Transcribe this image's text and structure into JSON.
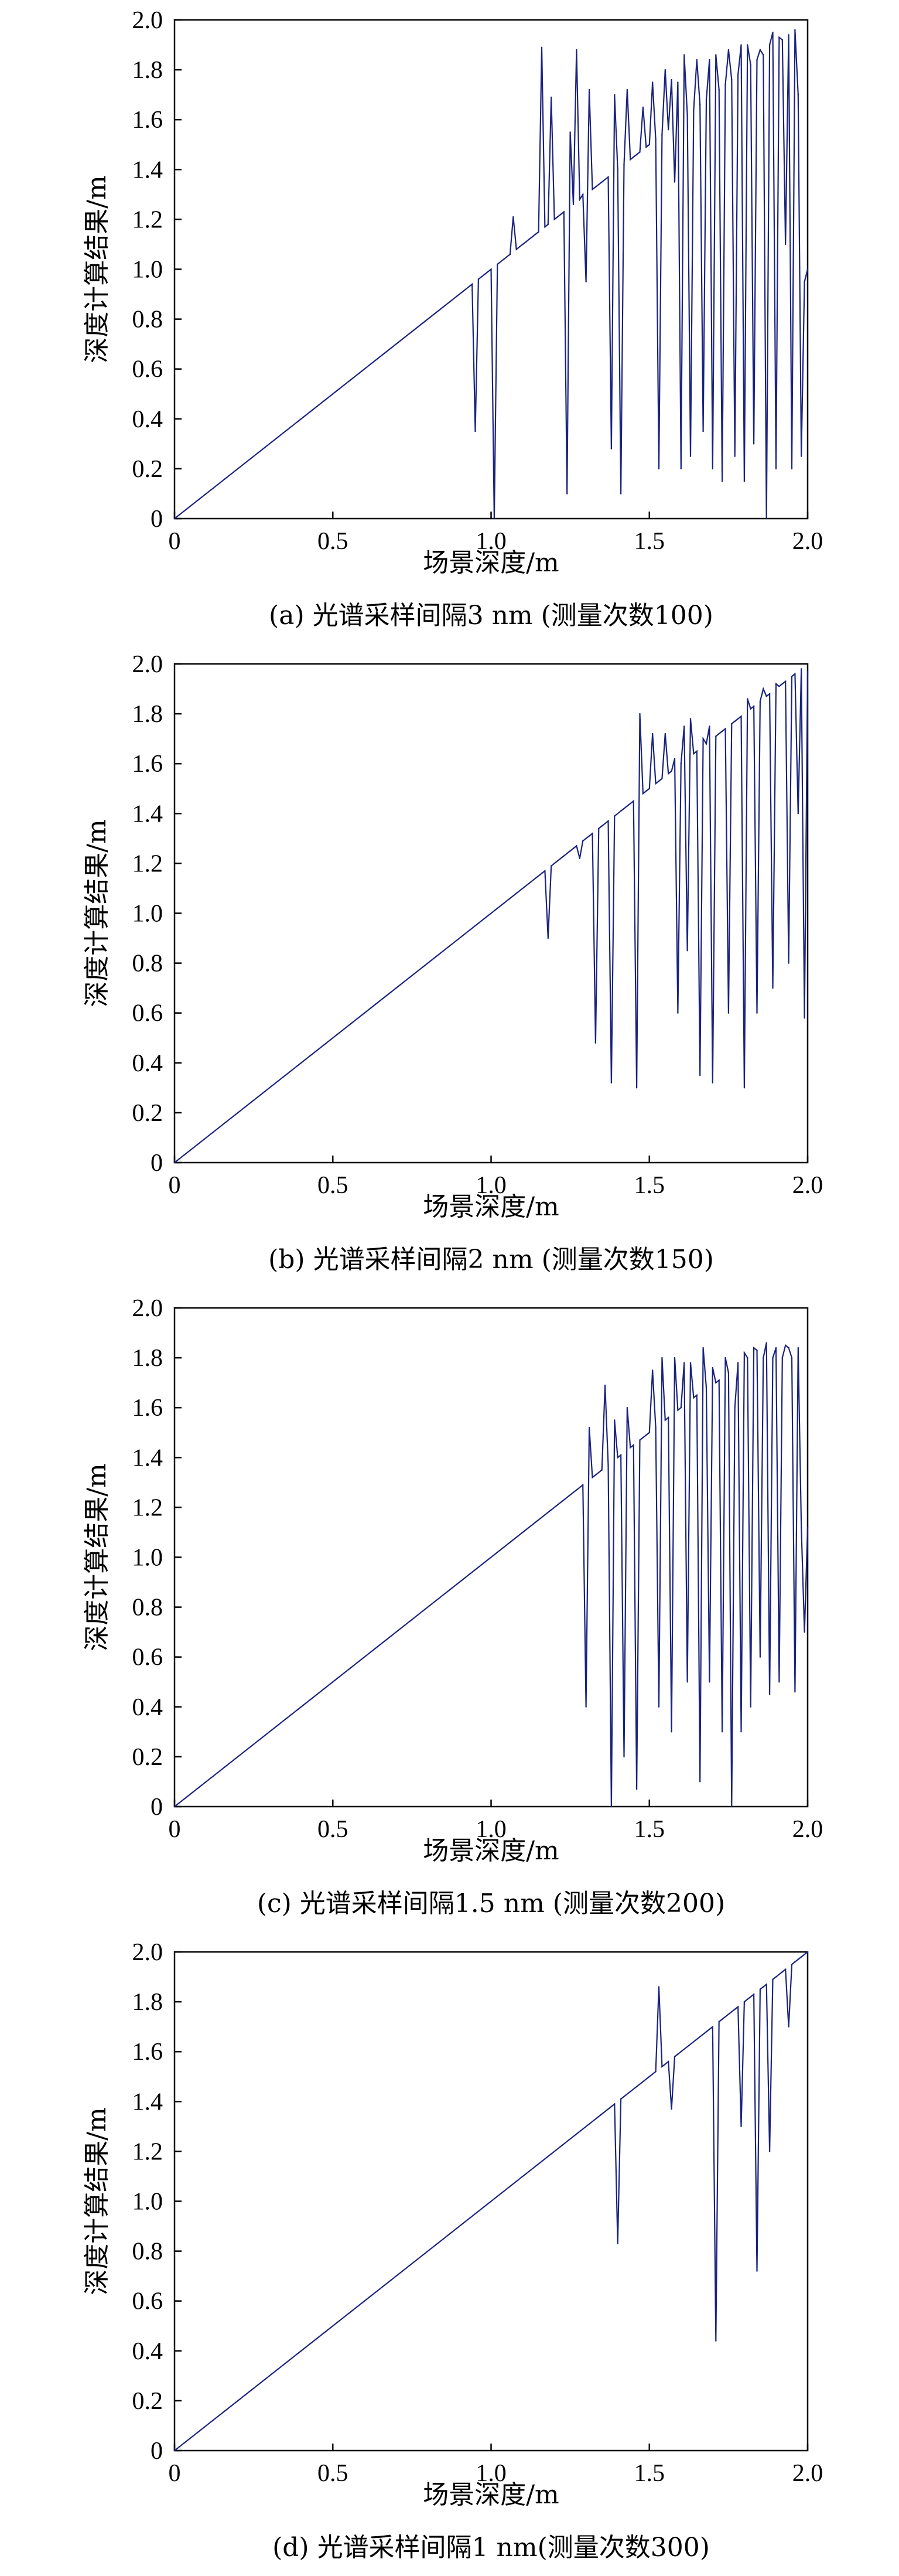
{
  "colors": {
    "series": "#1a237e",
    "axes": "#000000",
    "background": "#ffffff"
  },
  "chart_data": [
    {
      "type": "line",
      "caption": "(a) 光谱采样间隔3 nm (测量次数100)",
      "xlabel": "场景深度/m",
      "ylabel": "深度计算结果/m",
      "xlim": [
        0,
        2.0
      ],
      "ylim": [
        0,
        2.0
      ],
      "xticks": [
        "0",
        "0.5",
        "1.0",
        "1.5",
        "2.0"
      ],
      "yticks": [
        "0",
        "0.2",
        "0.4",
        "0.6",
        "0.8",
        "1.0",
        "1.2",
        "1.4",
        "1.6",
        "1.8",
        "2.0"
      ],
      "grid": false,
      "x": [
        0.0,
        0.94,
        0.95,
        0.96,
        0.97,
        0.98,
        0.99,
        1.0,
        1.01,
        1.02,
        1.03,
        1.04,
        1.05,
        1.06,
        1.07,
        1.08,
        1.09,
        1.1,
        1.11,
        1.12,
        1.13,
        1.14,
        1.15,
        1.16,
        1.17,
        1.18,
        1.19,
        1.2,
        1.21,
        1.22,
        1.23,
        1.24,
        1.25,
        1.26,
        1.27,
        1.28,
        1.29,
        1.3,
        1.31,
        1.32,
        1.33,
        1.34,
        1.35,
        1.36,
        1.37,
        1.38,
        1.39,
        1.4,
        1.41,
        1.42,
        1.43,
        1.44,
        1.45,
        1.46,
        1.47,
        1.48,
        1.49,
        1.5,
        1.51,
        1.52,
        1.53,
        1.54,
        1.55,
        1.56,
        1.57,
        1.58,
        1.59,
        1.6,
        1.61,
        1.62,
        1.63,
        1.64,
        1.65,
        1.66,
        1.67,
        1.68,
        1.69,
        1.7,
        1.71,
        1.72,
        1.73,
        1.74,
        1.75,
        1.76,
        1.77,
        1.78,
        1.79,
        1.8,
        1.81,
        1.82,
        1.83,
        1.84,
        1.85,
        1.86,
        1.87,
        1.88,
        1.89,
        1.9,
        1.91,
        1.92,
        1.93,
        1.94,
        1.95,
        1.96,
        1.97,
        1.98,
        1.99,
        2.0
      ],
      "y": [
        0.0,
        0.94,
        0.35,
        0.96,
        0.97,
        0.98,
        0.99,
        1.0,
        0.0,
        1.02,
        1.03,
        1.04,
        1.05,
        1.06,
        1.21,
        1.08,
        1.09,
        1.1,
        1.11,
        1.12,
        1.13,
        1.14,
        1.15,
        1.89,
        1.17,
        1.18,
        1.69,
        1.2,
        1.21,
        1.22,
        1.23,
        0.1,
        1.55,
        1.26,
        1.88,
        1.28,
        1.3,
        0.95,
        1.72,
        1.32,
        1.33,
        1.34,
        1.35,
        1.36,
        1.37,
        0.28,
        1.7,
        1.4,
        0.1,
        1.42,
        1.72,
        1.44,
        1.45,
        1.46,
        1.47,
        1.65,
        1.49,
        1.5,
        1.75,
        1.52,
        0.2,
        1.54,
        1.8,
        1.56,
        1.76,
        1.35,
        1.75,
        0.2,
        1.86,
        1.62,
        0.25,
        1.64,
        1.84,
        1.66,
        0.35,
        1.68,
        1.84,
        0.2,
        1.86,
        1.72,
        0.15,
        1.74,
        1.88,
        1.76,
        0.25,
        1.78,
        1.9,
        0.15,
        1.9,
        1.82,
        0.3,
        1.84,
        1.88,
        1.86,
        0.0,
        1.9,
        1.95,
        0.2,
        1.93,
        1.92,
        1.1,
        1.94,
        0.2,
        1.96,
        1.7,
        0.25,
        0.95,
        1.0
      ]
    },
    {
      "type": "line",
      "caption": "(b) 光谱采样间隔2 nm (测量次数150)",
      "xlabel": "场景深度/m",
      "ylabel": "深度计算结果/m",
      "xlim": [
        0,
        2.0
      ],
      "ylim": [
        0,
        2.0
      ],
      "xticks": [
        "0",
        "0.5",
        "1.0",
        "1.5",
        "2.0"
      ],
      "yticks": [
        "0",
        "0.2",
        "0.4",
        "0.6",
        "0.8",
        "1.0",
        "1.2",
        "1.4",
        "1.6",
        "1.8",
        "2.0"
      ],
      "grid": false,
      "x": [
        0.0,
        1.16,
        1.17,
        1.18,
        1.19,
        1.2,
        1.21,
        1.22,
        1.23,
        1.24,
        1.25,
        1.26,
        1.27,
        1.28,
        1.29,
        1.3,
        1.31,
        1.32,
        1.33,
        1.34,
        1.35,
        1.36,
        1.37,
        1.38,
        1.39,
        1.4,
        1.41,
        1.42,
        1.43,
        1.44,
        1.45,
        1.46,
        1.47,
        1.48,
        1.49,
        1.5,
        1.51,
        1.52,
        1.53,
        1.54,
        1.55,
        1.56,
        1.57,
        1.58,
        1.59,
        1.6,
        1.61,
        1.62,
        1.63,
        1.64,
        1.65,
        1.66,
        1.67,
        1.68,
        1.69,
        1.7,
        1.71,
        1.72,
        1.73,
        1.74,
        1.75,
        1.76,
        1.77,
        1.78,
        1.79,
        1.8,
        1.81,
        1.82,
        1.83,
        1.84,
        1.85,
        1.86,
        1.87,
        1.88,
        1.89,
        1.9,
        1.91,
        1.92,
        1.93,
        1.94,
        1.95,
        1.96,
        1.97,
        1.98,
        1.99,
        2.0
      ],
      "y": [
        0.0,
        1.16,
        1.17,
        0.9,
        1.19,
        1.2,
        1.21,
        1.22,
        1.23,
        1.24,
        1.25,
        1.26,
        1.27,
        1.22,
        1.29,
        1.3,
        1.31,
        1.32,
        0.48,
        1.34,
        1.35,
        1.36,
        1.37,
        0.32,
        1.39,
        1.4,
        1.41,
        1.42,
        1.43,
        1.44,
        1.45,
        0.3,
        1.8,
        1.48,
        1.49,
        1.5,
        1.72,
        1.52,
        1.53,
        1.54,
        1.72,
        1.56,
        1.57,
        1.62,
        0.6,
        1.6,
        1.75,
        0.85,
        1.78,
        1.64,
        1.65,
        0.35,
        1.7,
        1.68,
        1.75,
        0.32,
        1.71,
        1.72,
        1.73,
        1.74,
        0.6,
        1.76,
        1.77,
        1.78,
        1.79,
        0.3,
        1.86,
        1.82,
        1.83,
        0.6,
        1.85,
        1.9,
        1.87,
        1.88,
        0.7,
        1.92,
        1.91,
        1.92,
        1.93,
        0.8,
        1.95,
        1.96,
        1.4,
        1.98,
        0.58,
        1.97
      ]
    },
    {
      "type": "line",
      "caption": "(c) 光谱采样间隔1.5 nm (测量次数200)",
      "xlabel": "场景深度/m",
      "ylabel": "深度计算结果/m",
      "xlim": [
        0,
        2.0
      ],
      "ylim": [
        0,
        2.0
      ],
      "xticks": [
        "0",
        "0.5",
        "1.0",
        "1.5",
        "2.0"
      ],
      "yticks": [
        "0",
        "0.2",
        "0.4",
        "0.6",
        "0.8",
        "1.0",
        "1.2",
        "1.4",
        "1.6",
        "1.8",
        "2.0"
      ],
      "grid": false,
      "x": [
        0.0,
        1.29,
        1.3,
        1.31,
        1.32,
        1.33,
        1.34,
        1.35,
        1.36,
        1.37,
        1.38,
        1.39,
        1.4,
        1.41,
        1.42,
        1.43,
        1.44,
        1.45,
        1.46,
        1.47,
        1.48,
        1.49,
        1.5,
        1.51,
        1.52,
        1.53,
        1.54,
        1.55,
        1.56,
        1.57,
        1.58,
        1.59,
        1.6,
        1.61,
        1.62,
        1.63,
        1.64,
        1.65,
        1.66,
        1.67,
        1.68,
        1.69,
        1.7,
        1.71,
        1.72,
        1.73,
        1.74,
        1.75,
        1.76,
        1.77,
        1.78,
        1.79,
        1.8,
        1.81,
        1.82,
        1.83,
        1.84,
        1.85,
        1.86,
        1.87,
        1.88,
        1.89,
        1.9,
        1.91,
        1.92,
        1.93,
        1.94,
        1.95,
        1.96,
        1.97,
        1.98,
        1.99,
        2.0
      ],
      "y": [
        0.0,
        1.29,
        0.4,
        1.52,
        1.32,
        1.33,
        1.34,
        1.35,
        1.69,
        1.37,
        0.0,
        1.55,
        1.4,
        1.41,
        0.2,
        1.6,
        1.44,
        1.45,
        0.07,
        1.47,
        1.48,
        1.49,
        1.5,
        1.75,
        1.52,
        0.4,
        1.8,
        1.55,
        1.56,
        0.3,
        1.8,
        1.59,
        1.6,
        1.78,
        0.5,
        1.78,
        1.64,
        1.65,
        0.1,
        1.84,
        1.68,
        0.5,
        1.76,
        1.7,
        1.71,
        0.3,
        1.8,
        1.74,
        0.0,
        1.6,
        1.78,
        0.3,
        1.82,
        1.8,
        0.4,
        1.84,
        1.83,
        0.6,
        1.8,
        1.86,
        0.45,
        1.8,
        1.84,
        0.5,
        1.8,
        1.85,
        1.84,
        1.8,
        0.46,
        1.84,
        1.12,
        0.7,
        1.12
      ]
    },
    {
      "type": "line",
      "caption": "(d) 光谱采样间隔1 nm(测量次数300)",
      "xlabel": "场景深度/m",
      "ylabel": "深度计算结果/m",
      "xlim": [
        0,
        2.0
      ],
      "ylim": [
        0,
        2.0
      ],
      "xticks": [
        "0",
        "0.5",
        "1.0",
        "1.5",
        "2.0"
      ],
      "yticks": [
        "0",
        "0.2",
        "0.4",
        "0.6",
        "0.8",
        "1.0",
        "1.2",
        "1.4",
        "1.6",
        "1.8",
        "2.0"
      ],
      "grid": false,
      "x": [
        0.0,
        1.39,
        1.4,
        1.41,
        1.42,
        1.5,
        1.52,
        1.53,
        1.54,
        1.55,
        1.56,
        1.57,
        1.58,
        1.59,
        1.6,
        1.68,
        1.7,
        1.71,
        1.72,
        1.73,
        1.76,
        1.77,
        1.78,
        1.79,
        1.8,
        1.81,
        1.82,
        1.83,
        1.84,
        1.85,
        1.86,
        1.87,
        1.88,
        1.89,
        1.9,
        1.91,
        1.92,
        1.93,
        1.94,
        1.95,
        1.96,
        1.97,
        1.98,
        1.99,
        2.0
      ],
      "y": [
        0.0,
        1.39,
        0.83,
        1.41,
        1.42,
        1.5,
        1.52,
        1.86,
        1.54,
        1.55,
        1.56,
        1.37,
        1.58,
        1.59,
        1.6,
        1.68,
        1.7,
        0.44,
        1.72,
        1.73,
        1.76,
        1.77,
        1.78,
        1.3,
        1.8,
        1.81,
        1.82,
        1.83,
        0.72,
        1.85,
        1.86,
        1.87,
        1.2,
        1.89,
        1.9,
        1.91,
        1.92,
        1.93,
        1.7,
        1.95,
        1.96,
        1.97,
        1.98,
        1.99,
        2.0
      ]
    }
  ]
}
